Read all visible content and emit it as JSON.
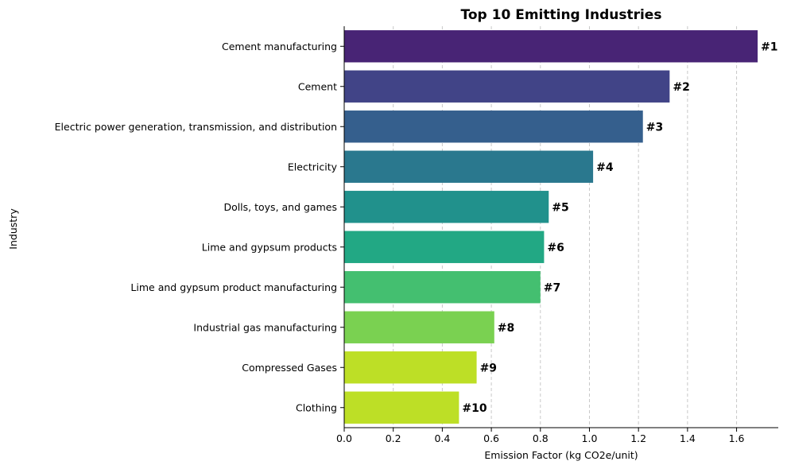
{
  "chart_data": {
    "type": "bar",
    "orientation": "horizontal",
    "title": "Top 10 Emitting Industries",
    "xlabel": "Emission Factor (kg CO2e/unit)",
    "ylabel": "Industry",
    "xlim": [
      0,
      1.77
    ],
    "x_ticks": [
      "0.0",
      "0.2",
      "0.4",
      "0.6",
      "0.8",
      "1.0",
      "1.2",
      "1.4",
      "1.6"
    ],
    "grid": "x-axis dashed",
    "categories": [
      "Cement manufacturing",
      "Cement",
      "Electric power generation, transmission, and distribution",
      "Electricity",
      "Dolls, toys, and games",
      "Lime and gypsum products",
      "Lime and gypsum product manufacturing",
      "Industrial gas manufacturing",
      "Compressed Gases",
      "Clothing"
    ],
    "values": [
      1.686,
      1.327,
      1.218,
      1.015,
      0.834,
      0.815,
      0.8,
      0.612,
      0.54,
      0.468
    ],
    "labels": [
      "#1",
      "#2",
      "#3",
      "#4",
      "#5",
      "#6",
      "#7",
      "#8",
      "#9",
      "#10"
    ],
    "colors": [
      "#482475",
      "#414487",
      "#355f8d",
      "#2a788e",
      "#21918c",
      "#22a884",
      "#44bf70",
      "#7ad151",
      "#bddf26",
      "#bddf26"
    ]
  }
}
